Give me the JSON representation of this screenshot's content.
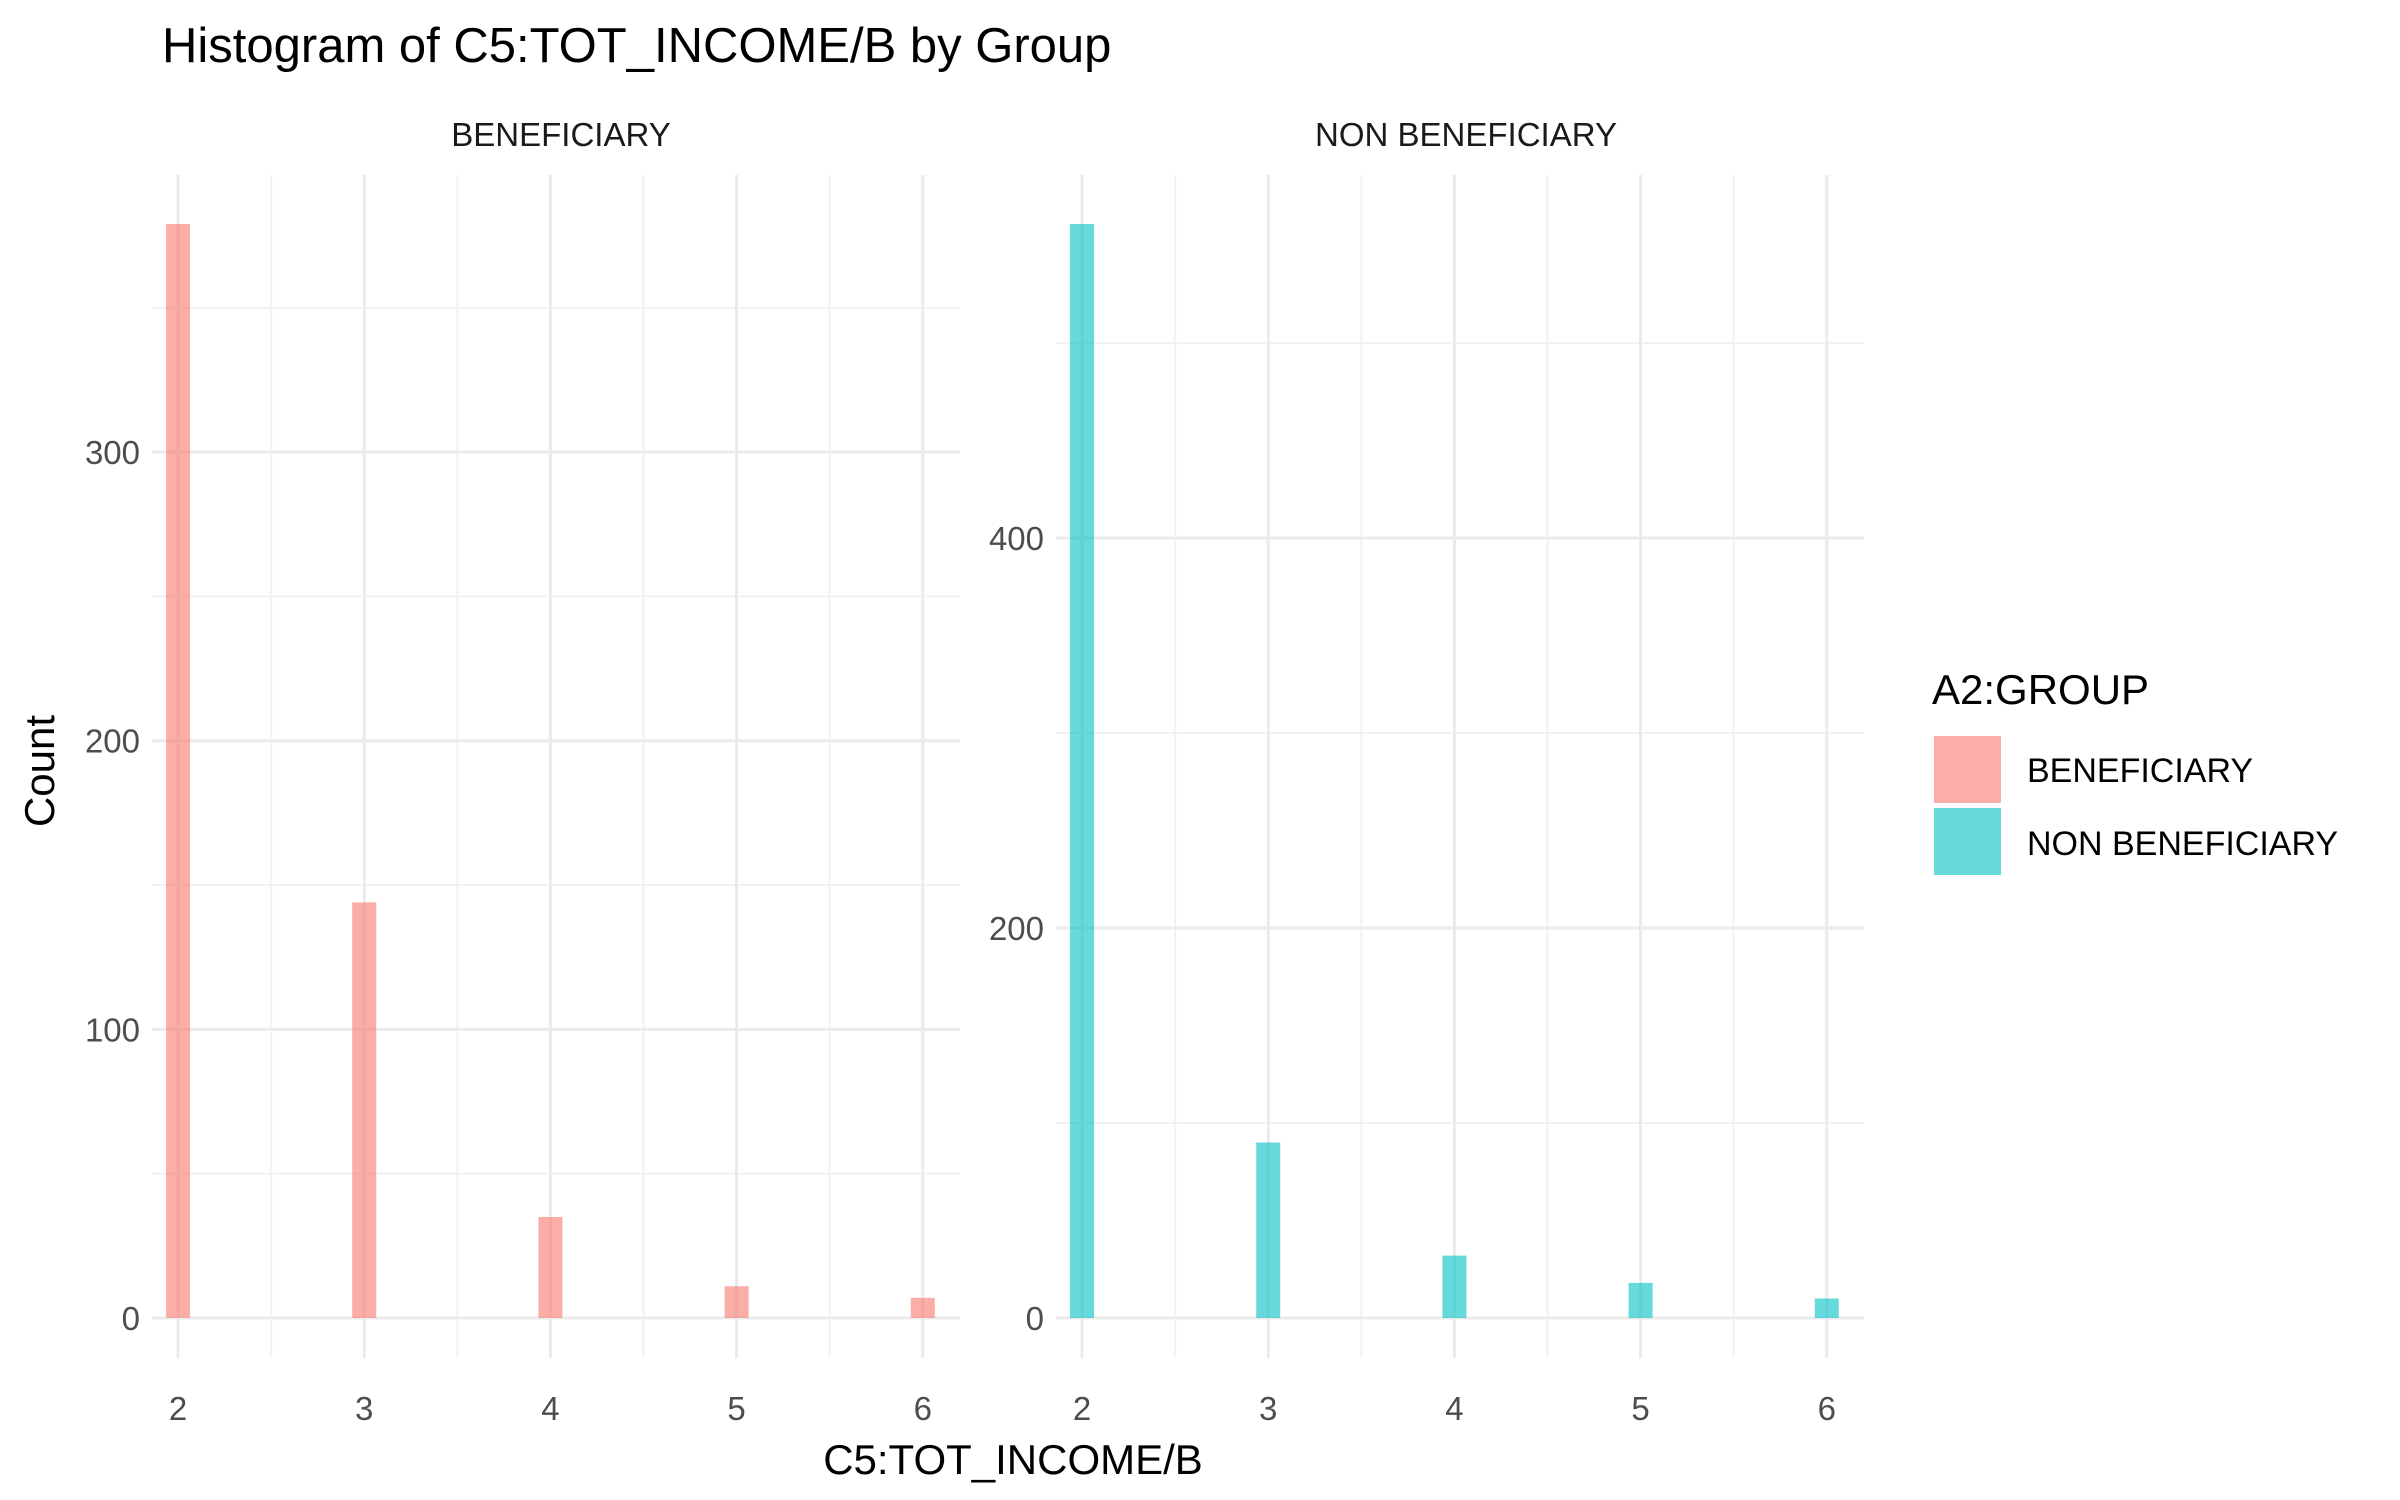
{
  "chart_data": {
    "type": "bar",
    "title": "Histogram of C5:TOT_INCOME/B by Group",
    "xlabel": "C5:TOT_INCOME/B",
    "ylabel": "Count",
    "grid": true,
    "legend": {
      "title": "A2:GROUP",
      "placement": "right",
      "entries": [
        {
          "label": "BENEFICIARY",
          "color": "#F8766D"
        },
        {
          "label": "NON BENEFICIARY",
          "color": "#00BFC4"
        }
      ]
    },
    "panels": [
      {
        "strip": "BENEFICIARY",
        "color": "#F8766D",
        "x": [
          2,
          3,
          4,
          5,
          6
        ],
        "values": [
          379,
          144,
          35,
          11,
          7
        ],
        "xlim": [
          1.86,
          6.2
        ],
        "ylim": [
          0,
          379
        ],
        "xticks": [
          "2",
          "3",
          "4",
          "5",
          "6"
        ],
        "yticks": [
          "0",
          "100",
          "200",
          "300"
        ],
        "ytick_values": [
          0,
          100,
          200,
          300
        ]
      },
      {
        "strip": "NON BENEFICIARY",
        "color": "#00BFC4",
        "x": [
          2,
          3,
          4,
          5,
          6
        ],
        "values": [
          561,
          90,
          32,
          18,
          10
        ],
        "xlim": [
          1.86,
          6.2
        ],
        "ylim": [
          0,
          561
        ],
        "xticks": [
          "2",
          "3",
          "4",
          "5",
          "6"
        ],
        "yticks": [
          "0",
          "200",
          "400"
        ],
        "ytick_values": [
          0,
          200,
          400
        ]
      }
    ]
  }
}
